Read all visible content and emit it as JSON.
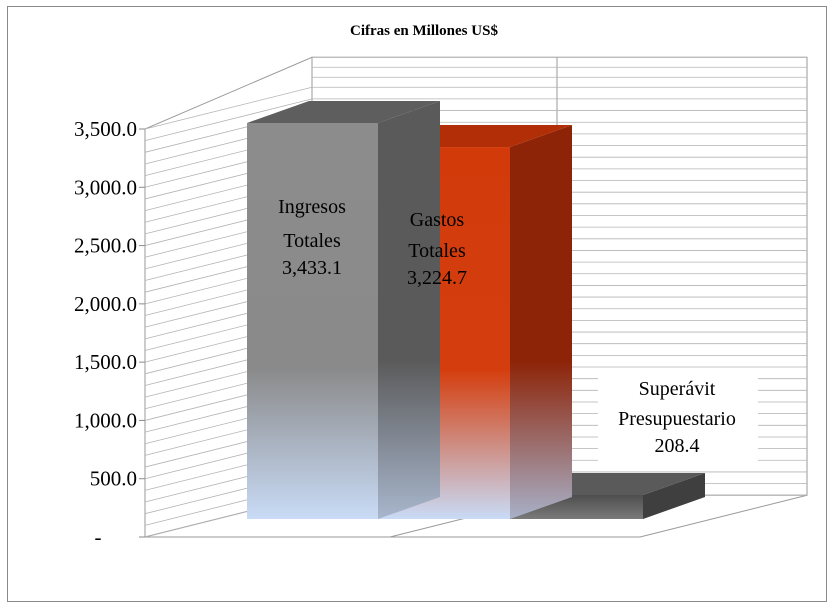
{
  "chart_data": {
    "type": "bar",
    "title": "Cifras en Millones US$",
    "categories": [
      "Ingresos Totales",
      "Gastos Totales",
      "Superávit Presupuestario"
    ],
    "values": [
      3433.1,
      3224.7,
      208.4
    ],
    "labels": [
      {
        "lines": [
          "Ingresos",
          "Totales",
          "3,433.1"
        ]
      },
      {
        "lines": [
          "Gastos",
          "Totales",
          "3,224.7"
        ]
      },
      {
        "lines": [
          "Superávit",
          "Presupuestario",
          "208.4"
        ]
      }
    ],
    "ylim": [
      0,
      3500
    ],
    "yticks": [
      {
        "value": 0,
        "label": "-"
      },
      {
        "value": 500,
        "label": "500.0"
      },
      {
        "value": 1000,
        "label": "1,000.0"
      },
      {
        "value": 1500,
        "label": "1,500.0"
      },
      {
        "value": 2000,
        "label": "2,000.0"
      },
      {
        "value": 2500,
        "label": "2,500.0"
      },
      {
        "value": 3000,
        "label": "3,000.0"
      },
      {
        "value": 3500,
        "label": "3,500.0"
      }
    ],
    "grid": true,
    "colors": {
      "ingresos": "#8c8c8c",
      "gastos": "#d23a0a",
      "superavit": "#555555",
      "fade": "#c8daf5"
    }
  }
}
